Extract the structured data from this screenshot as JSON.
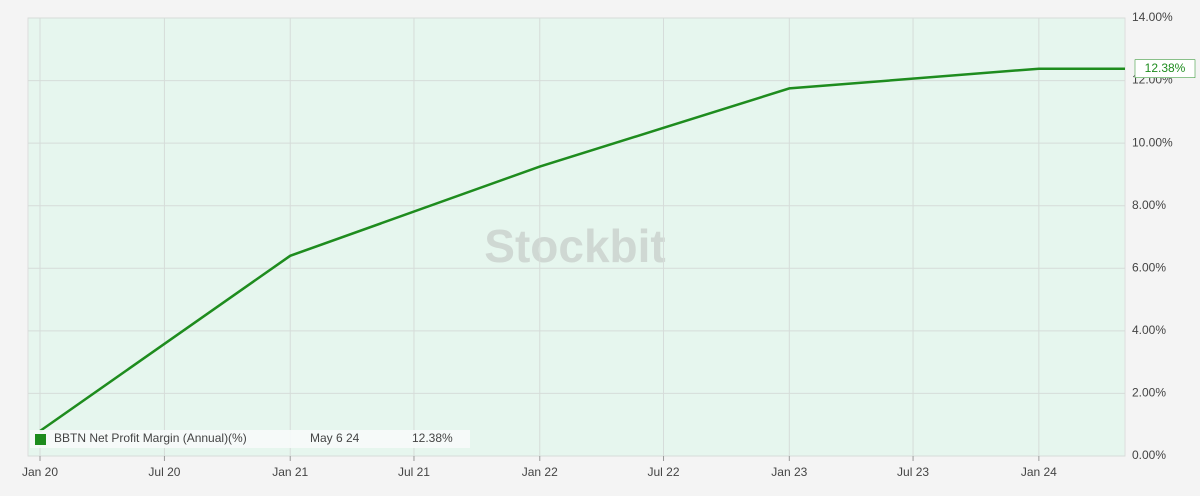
{
  "chart_data": {
    "type": "line",
    "watermark": "Stockbit",
    "x": [
      "Jan 20",
      "Jan 21",
      "Jan 22",
      "Jan 23",
      "Jan 24",
      "May 6 24"
    ],
    "series": [
      {
        "name": "BBTN Net Profit Margin (Annual)(%)",
        "color": "#1e8c1e",
        "values": [
          0.8,
          6.4,
          9.25,
          11.75,
          12.38,
          12.38
        ],
        "value_labels": [
          null,
          null,
          null,
          null,
          null,
          "12.38%"
        ]
      }
    ],
    "xlim": [
      "Jan 20",
      "May 6 24"
    ],
    "xticks": [
      "Jan 20",
      "Jul 20",
      "Jan 21",
      "Jul 21",
      "Jan 22",
      "Jul 22",
      "Jan 23",
      "Jul 23",
      "Jan 24"
    ],
    "ylim": [
      0,
      14
    ],
    "yticks": [
      {
        "value": 0,
        "label": "0.00%"
      },
      {
        "value": 2,
        "label": "2.00%"
      },
      {
        "value": 4,
        "label": "4.00%"
      },
      {
        "value": 6,
        "label": "6.00%"
      },
      {
        "value": 8,
        "label": "8.00%"
      },
      {
        "value": 10,
        "label": "10.00%"
      },
      {
        "value": 12,
        "label": "12.00%"
      },
      {
        "value": 14,
        "label": "14.00%"
      }
    ],
    "grid": true
  }
}
